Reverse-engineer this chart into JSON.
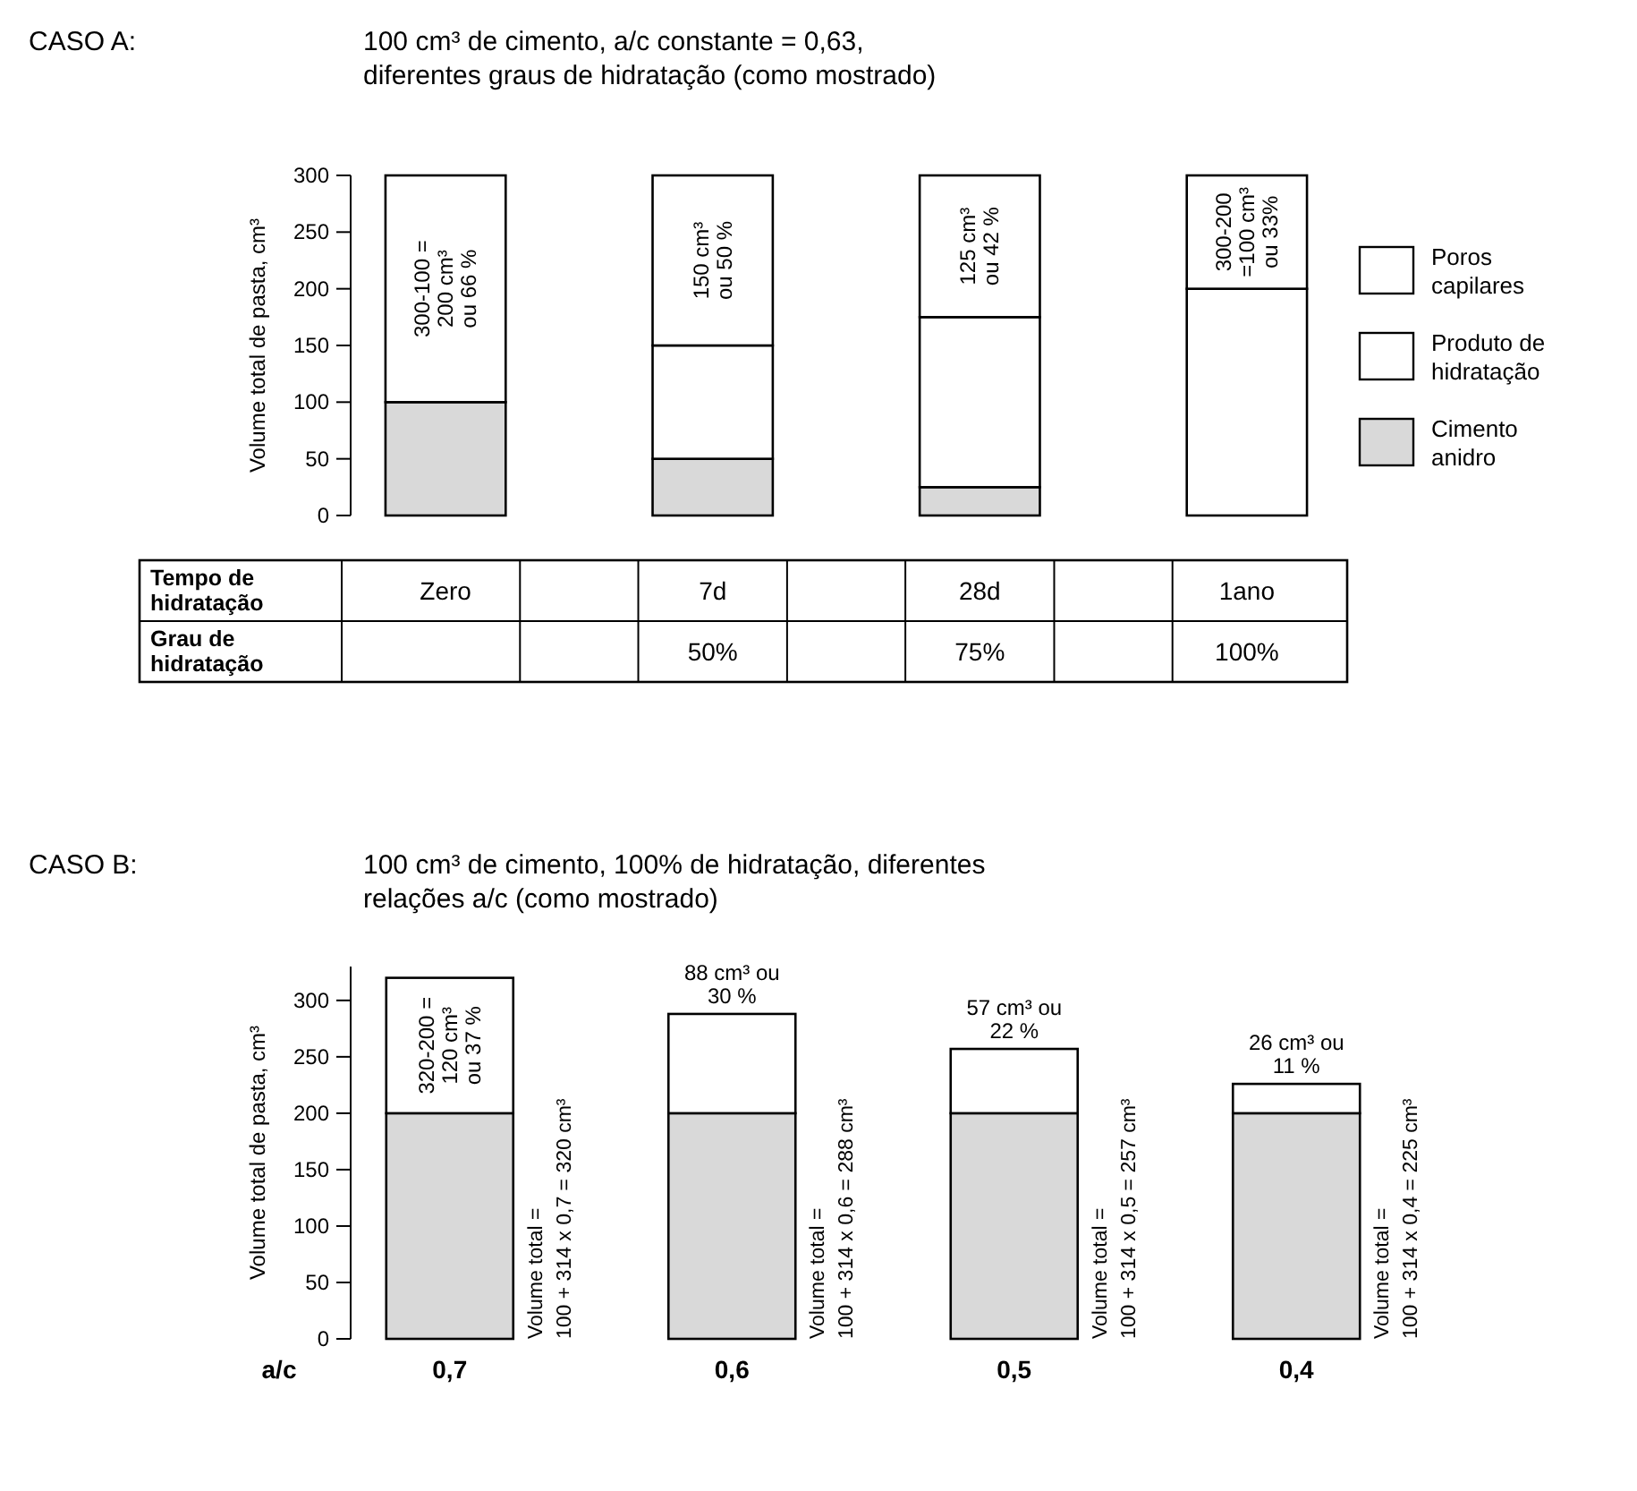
{
  "chart_data": [
    {
      "type": "bar",
      "title": "CASO A:",
      "subtitle": "100 cm³ de cimento, a/c constante = 0,63, diferentes graus de hidratação (como mostrado)",
      "ylabel": "Volume total de pasta, cm³",
      "categories": [
        "Zero",
        "7d",
        "28d",
        "1ano"
      ],
      "stacked": true,
      "ylim": [
        0,
        300
      ],
      "yticks": [
        0,
        50,
        100,
        150,
        200,
        250,
        300
      ],
      "legend": "right",
      "series": [
        {
          "name": "Cimento anidro",
          "color": "#d9d9d9",
          "values": [
            100,
            50,
            25,
            0
          ]
        },
        {
          "name": "Produto de hidratação",
          "color": "#ffffff",
          "values": [
            0,
            100,
            150,
            200
          ]
        },
        {
          "name": "Poros capilares",
          "color": "#ffffff",
          "values": [
            200,
            150,
            125,
            100
          ],
          "value_labels": [
            "300-100 = 200 cm³ ou 66 %",
            "150 cm³ ou 50 %",
            "125 cm³ ou 42 %",
            "300-200 =100 cm³ ou 33%"
          ]
        }
      ],
      "annotations": [
        "Tempo de hidratação",
        "Grau de hidratação",
        "50%",
        "75%",
        "100%"
      ]
    },
    {
      "type": "bar",
      "title": "CASO B:",
      "subtitle": "100 cm³ de cimento, 100% de hidratação, diferentes relações a/c (como mostrado)",
      "xlabel": "a/c",
      "ylabel": "Volume total de pasta, cm³",
      "categories": [
        "0,7",
        "0,6",
        "0,5",
        "0,4"
      ],
      "stacked": true,
      "ylim": [
        0,
        330
      ],
      "yticks": [
        0,
        50,
        100,
        150,
        200,
        250,
        300
      ],
      "legend": false,
      "series": [
        {
          "color": "#d9d9d9",
          "values": [
            200,
            200,
            200,
            200
          ]
        },
        {
          "color": "#ffffff",
          "values": [
            120,
            88,
            57,
            26
          ],
          "value_labels": [
            "320-200 = 120 cm³ ou 37 %",
            "88 cm³ ou 30 %",
            "57 cm³ ou 22 %",
            "26 cm³ ou 11 %"
          ]
        }
      ],
      "totals": [
        "Volume total = 100 + 314 x 0,7 = 320 cm³",
        "Volume total = 100 + 314 x 0,6 = 288 cm³",
        "Volume total = 100 + 314 x 0,5 = 257 cm³",
        "Volume total = 100 + 314 x 0,4 = 225 cm³"
      ]
    }
  ]
}
